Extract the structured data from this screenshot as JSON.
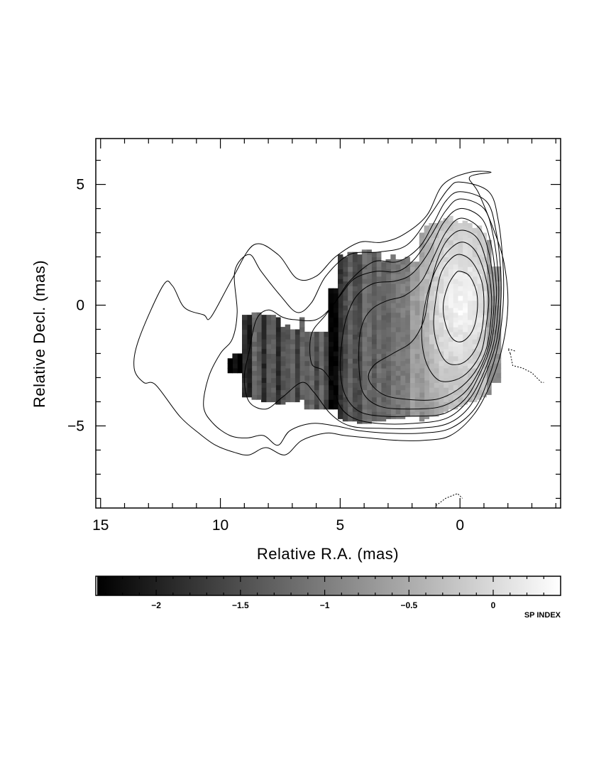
{
  "chart_data": {
    "type": "heatmap",
    "title": "",
    "xlabel": "Relative R.A. (mas)",
    "ylabel": "Relative Decl. (mas)",
    "xlim": [
      15.2,
      -4.2
    ],
    "ylim": [
      -8.4,
      6.9
    ],
    "x_major_ticks": [
      15,
      10,
      5,
      0
    ],
    "x_tick_labels": [
      "15",
      "10",
      "5",
      "0"
    ],
    "y_major_ticks": [
      5,
      0,
      -5
    ],
    "y_tick_labels": [
      "5",
      "0",
      "−5"
    ],
    "grayscale": "spectral index map (black = steep, white = flat)",
    "colorbar": {
      "title": "SP INDEX",
      "range": [
        -2.35,
        0.4
      ],
      "ticks": [
        -2,
        -1.5,
        -1,
        -0.5,
        0
      ],
      "tick_labels": [
        "−2",
        "−1.5",
        "−1",
        "−0.5",
        "0"
      ],
      "placement": "below plot"
    },
    "contours": [
      {
        "level": 1,
        "points": [
          [
            -1.3,
            5.5
          ],
          [
            -0.4,
            5.3
          ],
          [
            -0.8,
            4.6
          ],
          [
            -1.6,
            2.6
          ],
          [
            -1.9,
            1.4
          ],
          [
            -2.0,
            0.0
          ],
          [
            -1.8,
            -1.6
          ],
          [
            -1.3,
            -3.2
          ],
          [
            -0.6,
            -4.5
          ],
          [
            0.4,
            -5.4
          ],
          [
            1.5,
            -5.6
          ],
          [
            2.6,
            -5.6
          ],
          [
            3.8,
            -5.5
          ],
          [
            4.8,
            -5.4
          ],
          [
            5.6,
            -5.3
          ],
          [
            6.6,
            -5.6
          ],
          [
            7.3,
            -6.2
          ],
          [
            8.1,
            -5.9
          ],
          [
            8.8,
            -6.2
          ],
          [
            9.4,
            -6.1
          ],
          [
            10.2,
            -5.8
          ],
          [
            10.9,
            -5.3
          ],
          [
            11.7,
            -4.6
          ],
          [
            12.7,
            -3.3
          ],
          [
            13.2,
            -3.2
          ],
          [
            13.6,
            -2.6
          ],
          [
            13.4,
            -1.4
          ],
          [
            12.4,
            0.8
          ],
          [
            12.0,
            0.8
          ],
          [
            11.5,
            -0.1
          ],
          [
            10.7,
            -0.4
          ],
          [
            10.4,
            -0.5
          ],
          [
            9.5,
            1.1
          ],
          [
            8.6,
            2.5
          ],
          [
            7.6,
            2.1
          ],
          [
            6.8,
            1.1
          ],
          [
            6.0,
            1.2
          ],
          [
            5.2,
            2.0
          ],
          [
            4.2,
            2.6
          ],
          [
            3.3,
            2.6
          ],
          [
            2.4,
            2.9
          ],
          [
            1.4,
            3.7
          ],
          [
            0.7,
            5.0
          ],
          [
            -0.4,
            5.5
          ]
        ]
      },
      {
        "level": 2,
        "points": [
          [
            0.0,
            5.1
          ],
          [
            -1.2,
            4.7
          ],
          [
            -1.6,
            3.5
          ],
          [
            -1.8,
            1.6
          ],
          [
            -1.8,
            0.0
          ],
          [
            -1.6,
            -1.6
          ],
          [
            -1.2,
            -3.0
          ],
          [
            -0.6,
            -4.3
          ],
          [
            0.4,
            -5.1
          ],
          [
            1.6,
            -5.3
          ],
          [
            3.0,
            -5.3
          ],
          [
            4.2,
            -5.2
          ],
          [
            5.2,
            -5.0
          ],
          [
            6.2,
            -4.9
          ],
          [
            7.1,
            -5.2
          ],
          [
            7.6,
            -5.8
          ],
          [
            8.2,
            -5.4
          ],
          [
            8.9,
            -5.5
          ],
          [
            9.6,
            -5.4
          ],
          [
            10.3,
            -4.9
          ],
          [
            10.7,
            -4.2
          ],
          [
            10.5,
            -3.0
          ],
          [
            10.0,
            -2.0
          ],
          [
            9.5,
            -1.4
          ],
          [
            9.3,
            -0.3
          ],
          [
            9.4,
            1.4
          ],
          [
            8.8,
            2.1
          ],
          [
            8.3,
            1.4
          ],
          [
            7.5,
            0.4
          ],
          [
            6.8,
            -0.3
          ],
          [
            6.2,
            0.1
          ],
          [
            5.6,
            1.2
          ],
          [
            4.6,
            2.1
          ],
          [
            3.4,
            2.2
          ],
          [
            2.2,
            2.5
          ],
          [
            1.2,
            3.8
          ],
          [
            0.5,
            4.8
          ]
        ]
      },
      {
        "level": 3,
        "points": [
          [
            0.0,
            4.7
          ],
          [
            -1.1,
            4.3
          ],
          [
            -1.5,
            3.1
          ],
          [
            -1.7,
            1.4
          ],
          [
            -1.7,
            0.0
          ],
          [
            -1.5,
            -1.6
          ],
          [
            -1.0,
            -3.0
          ],
          [
            -0.4,
            -4.2
          ],
          [
            0.5,
            -4.9
          ],
          [
            1.8,
            -5.1
          ],
          [
            3.4,
            -5.1
          ],
          [
            4.6,
            -5.0
          ],
          [
            5.4,
            -4.5
          ],
          [
            6.1,
            -3.6
          ],
          [
            6.6,
            -3.2
          ],
          [
            7.4,
            -3.8
          ],
          [
            8.1,
            -4.3
          ],
          [
            8.8,
            -4.0
          ],
          [
            9.0,
            -3.0
          ],
          [
            8.8,
            -1.9
          ],
          [
            8.5,
            -0.6
          ],
          [
            8.0,
            -0.2
          ],
          [
            7.4,
            -0.5
          ],
          [
            6.9,
            -0.6
          ],
          [
            6.0,
            -0.6
          ],
          [
            5.3,
            0.0
          ],
          [
            4.6,
            1.0
          ],
          [
            3.6,
            1.8
          ],
          [
            2.6,
            1.8
          ],
          [
            1.7,
            2.4
          ],
          [
            1.1,
            3.4
          ],
          [
            0.6,
            4.3
          ]
        ]
      },
      {
        "level": 4,
        "points": [
          [
            0.0,
            4.4
          ],
          [
            -1.0,
            4.0
          ],
          [
            -1.4,
            2.8
          ],
          [
            -1.6,
            1.2
          ],
          [
            -1.6,
            0.0
          ],
          [
            -1.4,
            -1.6
          ],
          [
            -0.9,
            -3.0
          ],
          [
            -0.3,
            -4.0
          ],
          [
            0.6,
            -4.7
          ],
          [
            2.0,
            -4.9
          ],
          [
            3.4,
            -4.9
          ],
          [
            4.4,
            -4.7
          ],
          [
            5.0,
            -4.2
          ],
          [
            5.3,
            -3.3
          ],
          [
            5.7,
            -2.7
          ],
          [
            6.2,
            -2.4
          ],
          [
            6.2,
            -1.2
          ],
          [
            5.6,
            -0.4
          ],
          [
            5.0,
            0.4
          ],
          [
            4.4,
            1.1
          ],
          [
            3.5,
            1.4
          ],
          [
            2.6,
            1.4
          ],
          [
            1.9,
            1.9
          ],
          [
            1.2,
            2.9
          ],
          [
            0.6,
            3.9
          ]
        ]
      },
      {
        "level": 5,
        "points": [
          [
            0.0,
            4.0
          ],
          [
            -0.9,
            3.6
          ],
          [
            -1.3,
            2.5
          ],
          [
            -1.5,
            1.0
          ],
          [
            -1.5,
            0.0
          ],
          [
            -1.3,
            -1.6
          ],
          [
            -0.8,
            -2.9
          ],
          [
            -0.2,
            -3.9
          ],
          [
            0.7,
            -4.5
          ],
          [
            2.0,
            -4.6
          ],
          [
            3.2,
            -4.6
          ],
          [
            4.2,
            -4.4
          ],
          [
            4.8,
            -3.7
          ],
          [
            5.0,
            -2.6
          ],
          [
            4.9,
            -1.3
          ],
          [
            4.7,
            -0.4
          ],
          [
            4.3,
            0.4
          ],
          [
            3.6,
            0.9
          ],
          [
            2.7,
            1.0
          ],
          [
            2.0,
            1.3
          ],
          [
            1.3,
            2.2
          ],
          [
            0.7,
            3.4
          ]
        ]
      },
      {
        "level": 6,
        "points": [
          [
            0.0,
            3.6
          ],
          [
            -0.8,
            3.2
          ],
          [
            -1.2,
            2.2
          ],
          [
            -1.4,
            0.8
          ],
          [
            -1.4,
            -0.3
          ],
          [
            -1.2,
            -1.7
          ],
          [
            -0.7,
            -2.9
          ],
          [
            -0.1,
            -3.7
          ],
          [
            0.8,
            -4.2
          ],
          [
            2.1,
            -4.3
          ],
          [
            3.3,
            -4.2
          ],
          [
            4.0,
            -3.7
          ],
          [
            4.2,
            -2.8
          ],
          [
            4.2,
            -1.4
          ],
          [
            4.0,
            -0.6
          ],
          [
            3.6,
            -0.1
          ],
          [
            3.0,
            0.2
          ],
          [
            2.3,
            0.4
          ],
          [
            1.6,
            1.0
          ],
          [
            1.1,
            2.0
          ],
          [
            0.6,
            3.0
          ]
        ]
      },
      {
        "level": 7,
        "points": [
          [
            0.0,
            3.1
          ],
          [
            -0.7,
            2.8
          ],
          [
            -1.1,
            1.8
          ],
          [
            -1.3,
            0.6
          ],
          [
            -1.3,
            -0.5
          ],
          [
            -1.1,
            -1.8
          ],
          [
            -0.6,
            -2.8
          ],
          [
            0.1,
            -3.5
          ],
          [
            1.0,
            -3.9
          ],
          [
            2.2,
            -3.9
          ],
          [
            3.2,
            -3.7
          ],
          [
            3.8,
            -3.1
          ],
          [
            3.6,
            -2.5
          ],
          [
            2.8,
            -2.0
          ],
          [
            2.0,
            -1.5
          ],
          [
            1.5,
            -0.6
          ],
          [
            1.3,
            0.5
          ],
          [
            1.0,
            1.7
          ],
          [
            0.6,
            2.6
          ]
        ]
      },
      {
        "level": 8,
        "points": [
          [
            0.0,
            2.6
          ],
          [
            -0.6,
            2.3
          ],
          [
            -1.0,
            1.4
          ],
          [
            -1.2,
            0.3
          ],
          [
            -1.1,
            -0.8
          ],
          [
            -0.9,
            -1.9
          ],
          [
            -0.4,
            -2.7
          ],
          [
            0.2,
            -3.1
          ],
          [
            0.9,
            -3.1
          ],
          [
            1.4,
            -2.4
          ],
          [
            1.6,
            -1.3
          ],
          [
            1.5,
            -0.2
          ],
          [
            1.2,
            1.0
          ],
          [
            0.7,
            2.0
          ]
        ]
      },
      {
        "level": 9,
        "points": [
          [
            0.0,
            2.1
          ],
          [
            -0.5,
            1.8
          ],
          [
            -0.9,
            1.0
          ],
          [
            -1.0,
            0.0
          ],
          [
            -0.9,
            -1.1
          ],
          [
            -0.6,
            -1.9
          ],
          [
            -0.1,
            -2.4
          ],
          [
            0.5,
            -2.4
          ],
          [
            0.9,
            -1.8
          ],
          [
            1.1,
            -0.8
          ],
          [
            1.0,
            0.3
          ],
          [
            0.8,
            1.3
          ],
          [
            0.4,
            1.9
          ]
        ]
      },
      {
        "level": 10,
        "points": [
          [
            0.0,
            1.4
          ],
          [
            -0.4,
            1.2
          ],
          [
            -0.7,
            0.5
          ],
          [
            -0.7,
            -0.4
          ],
          [
            -0.5,
            -1.1
          ],
          [
            -0.1,
            -1.5
          ],
          [
            0.3,
            -1.4
          ],
          [
            0.6,
            -0.8
          ],
          [
            0.7,
            0.0
          ],
          [
            0.5,
            0.8
          ],
          [
            0.2,
            1.3
          ]
        ]
      },
      {
        "level": -1,
        "negative": true,
        "closed": false,
        "points": [
          [
            -2.1,
            -2.0
          ],
          [
            -2.2,
            -2.5
          ],
          [
            -2.6,
            -2.6
          ],
          [
            -3.0,
            -2.8
          ],
          [
            -3.4,
            -3.2
          ],
          [
            -3.5,
            -3.2
          ]
        ]
      },
      {
        "level": -1,
        "negative": true,
        "closed": false,
        "points": [
          [
            -2.1,
            -2.0
          ],
          [
            -2.0,
            -1.8
          ],
          [
            -2.3,
            -1.9
          ]
        ]
      },
      {
        "level": -1,
        "negative": true,
        "closed": false,
        "points": [
          [
            1.0,
            -8.3
          ],
          [
            0.6,
            -8.0
          ],
          [
            0.1,
            -7.8
          ],
          [
            -0.1,
            -8.0
          ]
        ]
      }
    ]
  }
}
